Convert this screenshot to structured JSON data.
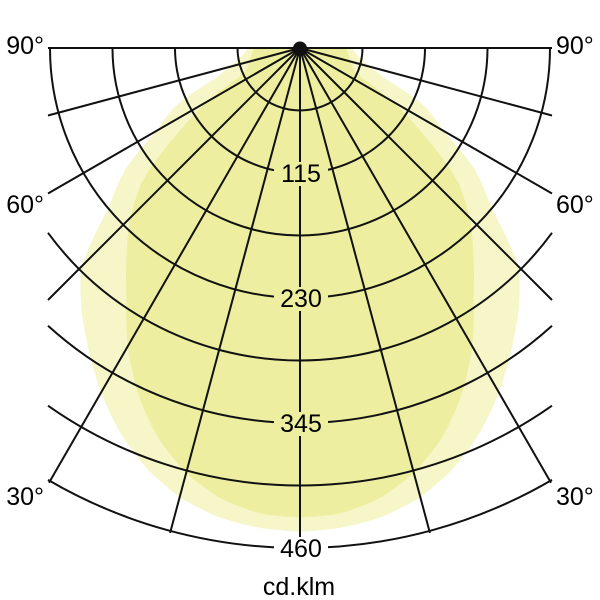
{
  "chart_data": {
    "type": "area",
    "layout": "polar-photometric-diagram",
    "title": "",
    "unit_label": "cd.klm",
    "radial_axis": {
      "unit": "cd/klm",
      "tick_step": 57.5,
      "max": 460,
      "ring_count": 8,
      "labeled_ticks": [
        115,
        230,
        345,
        460
      ]
    },
    "angular_axis": {
      "ray_step_deg": 15,
      "min_deg": -90,
      "max_deg": 90,
      "labels": [
        {
          "text": "90°",
          "side": "left",
          "angle_deg": 90
        },
        {
          "text": "90°",
          "side": "right",
          "angle_deg": 90
        },
        {
          "text": "60°",
          "side": "left",
          "angle_deg": 60
        },
        {
          "text": "60°",
          "side": "right",
          "angle_deg": 60
        },
        {
          "text": "30°",
          "side": "left",
          "angle_deg": 30
        },
        {
          "text": "30°",
          "side": "right",
          "angle_deg": 30
        }
      ]
    },
    "series": [
      {
        "name": "outer-distribution-lobe",
        "color": "#f6f6c8",
        "points_deg_value": [
          [
            0,
            445
          ],
          [
            5,
            443
          ],
          [
            10,
            438
          ],
          [
            15,
            428
          ],
          [
            20,
            412
          ],
          [
            25,
            391
          ],
          [
            30,
            366
          ],
          [
            35,
            339
          ],
          [
            40,
            313
          ],
          [
            45,
            285
          ],
          [
            50,
            230
          ],
          [
            55,
            198
          ],
          [
            60,
            152
          ],
          [
            65,
            127
          ],
          [
            70,
            83
          ],
          [
            75,
            66
          ],
          [
            80,
            57
          ],
          [
            85,
            51
          ],
          [
            90,
            48
          ]
        ]
      },
      {
        "name": "inner-distribution-lobe",
        "color": "#edee9f",
        "points_deg_value": [
          [
            0,
            432
          ],
          [
            5,
            430
          ],
          [
            10,
            421
          ],
          [
            15,
            405
          ],
          [
            20,
            382
          ],
          [
            25,
            352
          ],
          [
            30,
            317
          ],
          [
            35,
            278
          ],
          [
            40,
            248
          ],
          [
            45,
            221
          ],
          [
            50,
            189
          ],
          [
            55,
            138
          ],
          [
            60,
            97
          ],
          [
            65,
            57
          ],
          [
            70,
            51
          ],
          [
            75,
            48
          ],
          [
            80,
            46
          ],
          [
            85,
            44
          ],
          [
            90,
            42
          ]
        ]
      }
    ],
    "colors": {
      "background": "#ffffff",
      "grid": "#111111",
      "label_text": "#000000"
    },
    "legend": {
      "visible": false
    }
  }
}
